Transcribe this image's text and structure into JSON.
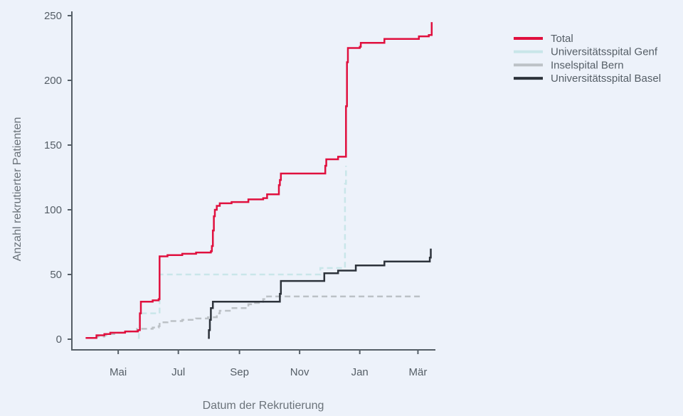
{
  "chart_data": {
    "type": "line",
    "step": true,
    "xlabel": "Datum der Rekrutierung",
    "ylabel": "Anzahl rekrutierter Patienten",
    "x_domain": [
      "2022-03-15",
      "2023-03-18"
    ],
    "ylim": [
      0,
      250
    ],
    "y_ticks": [
      0,
      50,
      100,
      150,
      200,
      250
    ],
    "x_ticks": [
      {
        "date": "2022-05-01",
        "label": "Mai"
      },
      {
        "date": "2022-07-01",
        "label": "Jul"
      },
      {
        "date": "2022-09-01",
        "label": "Sep"
      },
      {
        "date": "2022-11-01",
        "label": "Nov"
      },
      {
        "date": "2023-01-01",
        "label": "Jan"
      },
      {
        "date": "2023-03-01",
        "label": "Mär"
      }
    ],
    "legend_position": "top-right",
    "grid": false,
    "series": [
      {
        "name": "Total",
        "color": "#e0103e",
        "dash": "solid",
        "points": [
          [
            "2022-03-29",
            1
          ],
          [
            "2022-04-09",
            3
          ],
          [
            "2022-04-17",
            4
          ],
          [
            "2022-04-23",
            5
          ],
          [
            "2022-05-01",
            5
          ],
          [
            "2022-05-08",
            6
          ],
          [
            "2022-05-21",
            7
          ],
          [
            "2022-05-23",
            20
          ],
          [
            "2022-05-24",
            29
          ],
          [
            "2022-06-05",
            30
          ],
          [
            "2022-06-11",
            31
          ],
          [
            "2022-06-12",
            64
          ],
          [
            "2022-06-20",
            65
          ],
          [
            "2022-07-05",
            66
          ],
          [
            "2022-07-19",
            67
          ],
          [
            "2022-08-03",
            68
          ],
          [
            "2022-08-04",
            72
          ],
          [
            "2022-08-05",
            84
          ],
          [
            "2022-08-06",
            95
          ],
          [
            "2022-08-07",
            100
          ],
          [
            "2022-08-09",
            103
          ],
          [
            "2022-08-12",
            105
          ],
          [
            "2022-08-24",
            106
          ],
          [
            "2022-09-10",
            108
          ],
          [
            "2022-09-25",
            109
          ],
          [
            "2022-09-29",
            112
          ],
          [
            "2022-10-11",
            119
          ],
          [
            "2022-10-12",
            123
          ],
          [
            "2022-10-13",
            128
          ],
          [
            "2022-11-25",
            128
          ],
          [
            "2022-11-27",
            134
          ],
          [
            "2022-11-28",
            139
          ],
          [
            "2022-12-10",
            141
          ],
          [
            "2022-12-17",
            141
          ],
          [
            "2022-12-18",
            180
          ],
          [
            "2022-12-19",
            214
          ],
          [
            "2022-12-20",
            225
          ],
          [
            "2023-01-01",
            226
          ],
          [
            "2023-01-02",
            229
          ],
          [
            "2023-01-25",
            229
          ],
          [
            "2023-01-26",
            232
          ],
          [
            "2023-02-28",
            232
          ],
          [
            "2023-03-02",
            234
          ],
          [
            "2023-03-12",
            235
          ],
          [
            "2023-03-15",
            245
          ]
        ],
        "end": "2023-03-15"
      },
      {
        "name": "Universitätsspital Genf",
        "color": "#c9e6e9",
        "dash": "dashed",
        "points": [
          [
            "2022-05-21",
            1
          ],
          [
            "2022-05-22",
            6
          ],
          [
            "2022-05-23",
            20
          ],
          [
            "2022-06-11",
            20
          ],
          [
            "2022-06-12",
            50
          ],
          [
            "2022-11-21",
            50
          ],
          [
            "2022-11-22",
            55
          ],
          [
            "2022-12-16",
            55
          ],
          [
            "2022-12-17",
            120
          ],
          [
            "2022-12-18",
            134
          ]
        ],
        "end": "2022-12-18"
      },
      {
        "name": "Inselspital Bern",
        "color": "#bcc1c6",
        "dash": "dashed",
        "points": [
          [
            "2022-03-29",
            1
          ],
          [
            "2022-04-09",
            2
          ],
          [
            "2022-04-17",
            3
          ],
          [
            "2022-04-23",
            4
          ],
          [
            "2022-05-01",
            5
          ],
          [
            "2022-05-08",
            6
          ],
          [
            "2022-05-20",
            8
          ],
          [
            "2022-06-05",
            9
          ],
          [
            "2022-06-11",
            10
          ],
          [
            "2022-06-12",
            13
          ],
          [
            "2022-06-20",
            14
          ],
          [
            "2022-07-05",
            15
          ],
          [
            "2022-07-19",
            16
          ],
          [
            "2022-07-31",
            17
          ],
          [
            "2022-08-09",
            20
          ],
          [
            "2022-08-12",
            22
          ],
          [
            "2022-08-24",
            24
          ],
          [
            "2022-09-10",
            27
          ],
          [
            "2022-09-15",
            28
          ],
          [
            "2022-09-25",
            31
          ],
          [
            "2022-09-29",
            33
          ],
          [
            "2023-03-05",
            33
          ]
        ],
        "end": "2023-03-05"
      },
      {
        "name": "Universitätsspital Basel",
        "color": "#2d333b",
        "dash": "solid",
        "points": [
          [
            "2022-07-31",
            1
          ],
          [
            "2022-08-01",
            7
          ],
          [
            "2022-08-02",
            15
          ],
          [
            "2022-08-03",
            24
          ],
          [
            "2022-08-05",
            29
          ],
          [
            "2022-10-11",
            29
          ],
          [
            "2022-10-12",
            35
          ],
          [
            "2022-10-13",
            45
          ],
          [
            "2022-11-25",
            45
          ],
          [
            "2022-11-26",
            51
          ],
          [
            "2022-12-10",
            53
          ],
          [
            "2022-12-27",
            53
          ],
          [
            "2022-12-28",
            57
          ],
          [
            "2023-01-25",
            57
          ],
          [
            "2023-01-26",
            60
          ],
          [
            "2023-03-12",
            60
          ],
          [
            "2023-03-13",
            63
          ],
          [
            "2023-03-14",
            70
          ]
        ],
        "end": "2023-03-14"
      }
    ]
  }
}
